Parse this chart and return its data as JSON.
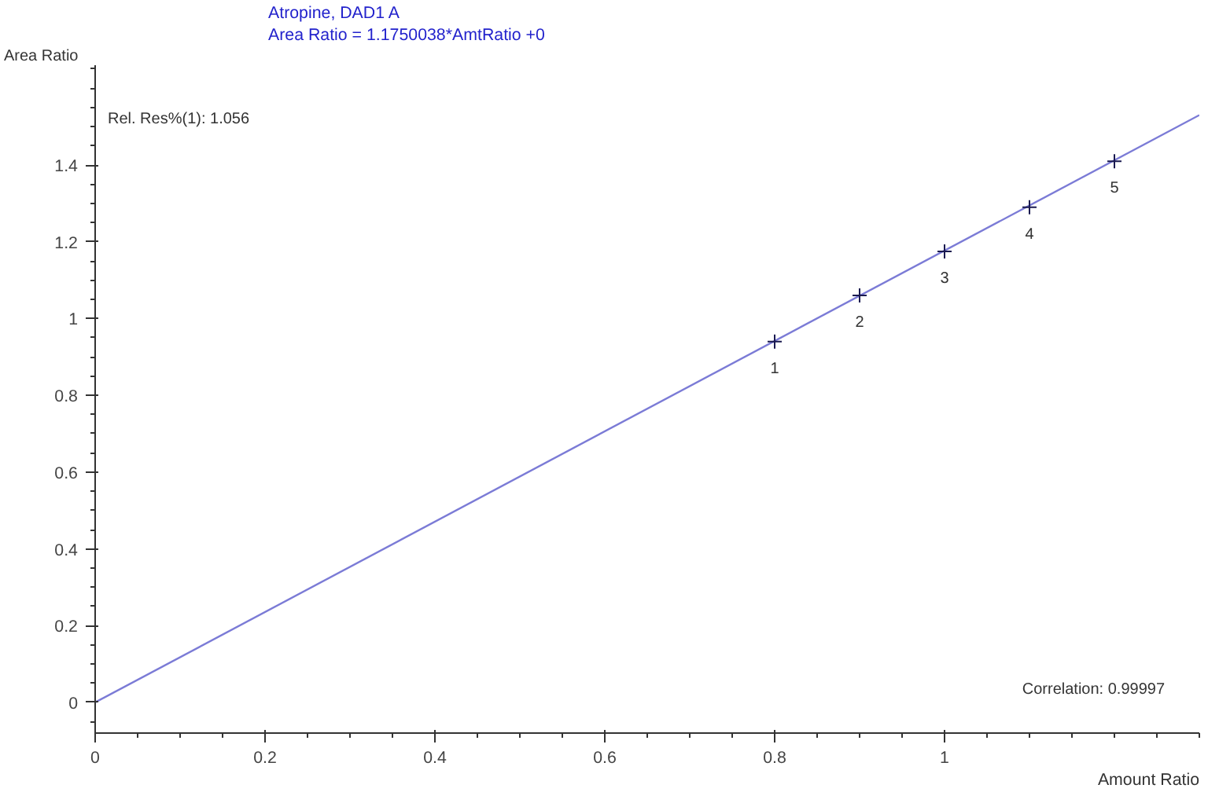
{
  "chart_data": {
    "type": "scatter",
    "title": "Atropine, DAD1 A",
    "subtitle": "Area Ratio = 1.1750038*AmtRatio +0",
    "xlabel": "Amount Ratio",
    "ylabel": "Area Ratio",
    "series": [
      {
        "type": "line",
        "color": "#7b7bd6",
        "x": [
          0,
          1.3
        ],
        "values": [
          0,
          1.53
        ],
        "marker": "none"
      },
      {
        "color": "#1a1a50",
        "x": [
          0.8,
          0.9,
          1.0,
          1.1,
          1.2
        ],
        "values": [
          0.94,
          1.06,
          1.175,
          1.29,
          1.41
        ],
        "marker": "cross"
      }
    ],
    "annotations": [
      "Rel. Res%(1): 1.056",
      "Correlation: 0.99997",
      {
        "text": "1",
        "x": 0.8,
        "y": 0.94
      },
      {
        "text": "2",
        "x": 0.9,
        "y": 1.06
      },
      {
        "text": "3",
        "x": 1.0,
        "y": 1.175
      },
      {
        "text": "4",
        "x": 1.1,
        "y": 1.29
      },
      {
        "text": "5",
        "x": 1.2,
        "y": 1.41
      }
    ],
    "xlim": [
      0,
      1.3
    ],
    "ylim": [
      -0.08,
      1.66
    ],
    "xticks": [
      0,
      0.2,
      0.4,
      0.6,
      0.8,
      1
    ],
    "yticks": [
      0,
      0.2,
      0.4,
      0.6,
      0.8,
      1,
      1.2,
      1.4
    ],
    "grid": false
  }
}
